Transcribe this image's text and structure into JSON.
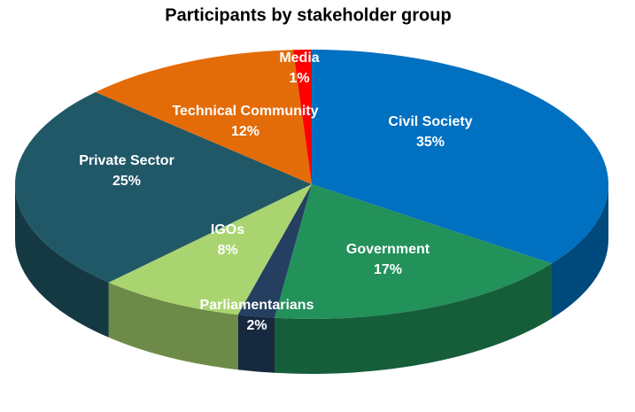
{
  "chart_data": {
    "type": "pie",
    "title": "Participants by stakeholder group",
    "categories": [
      "Civil Society",
      "Government",
      "Parliamentarians",
      "IGOs",
      "Private Sector",
      "Technical Community",
      "Media"
    ],
    "values": [
      35,
      17,
      2,
      8,
      25,
      12,
      1
    ],
    "value_labels": [
      "35%",
      "17%",
      "2%",
      "8%",
      "25%",
      "12%",
      "1%"
    ],
    "colors": [
      "#0070c0",
      "#23915a",
      "#243f60",
      "#a9d46f",
      "#215868",
      "#e36c09",
      "#ff0000"
    ]
  }
}
